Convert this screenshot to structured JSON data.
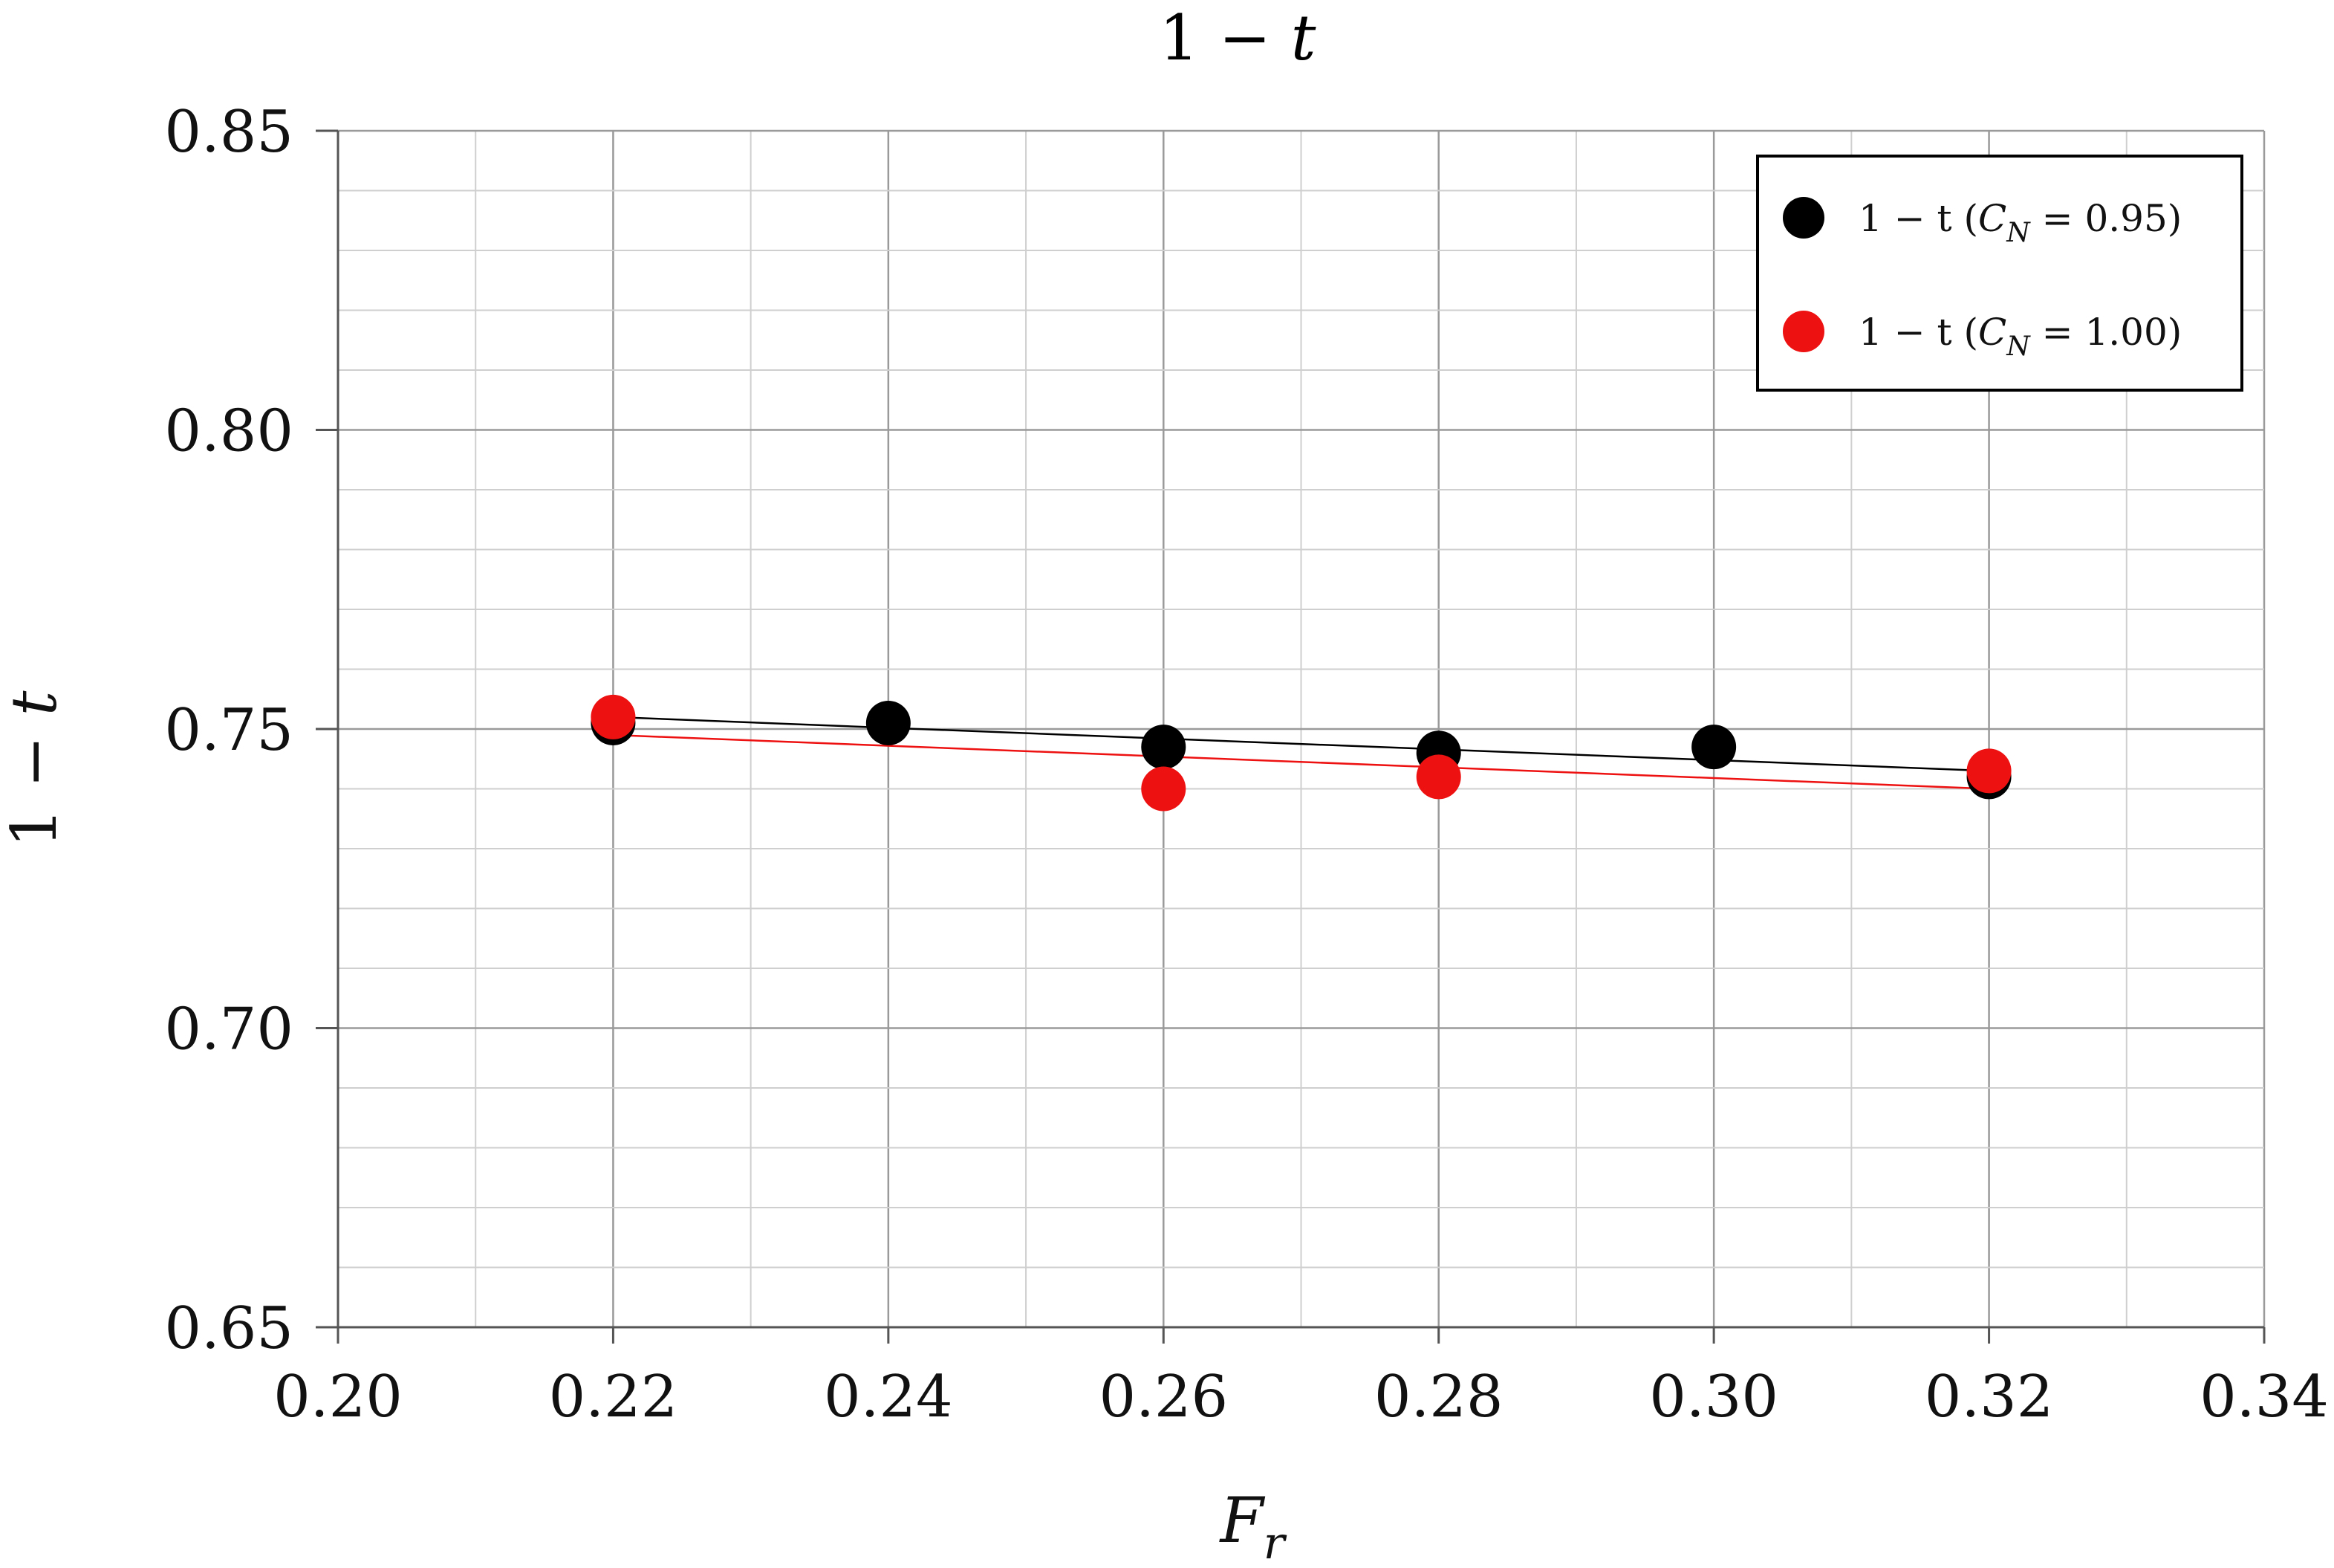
{
  "chart_data": {
    "type": "scatter",
    "title": "1 − t",
    "xlabel": "Fr",
    "ylabel": "1 − t",
    "xlim": [
      0.2,
      0.34
    ],
    "ylim": [
      0.65,
      0.85
    ],
    "x_ticks": [
      "0.20",
      "0.22",
      "0.24",
      "0.26",
      "0.28",
      "0.30",
      "0.32",
      "0.34"
    ],
    "y_ticks": [
      "0.65",
      "0.70",
      "0.75",
      "0.80",
      "0.85"
    ],
    "grid": true,
    "legend_position": "top-right",
    "series": [
      {
        "name": "1 − t (CN = 0.95)",
        "color": "#000000",
        "x": [
          0.22,
          0.24,
          0.26,
          0.28,
          0.3,
          0.32
        ],
        "y": [
          0.751,
          0.751,
          0.747,
          0.746,
          0.747,
          0.742
        ],
        "trendline": {
          "x": [
            0.22,
            0.32
          ],
          "y": [
            0.752,
            0.743
          ]
        }
      },
      {
        "name": "1 − t (CN = 1.00)",
        "color": "#ee1111",
        "x": [
          0.22,
          0.26,
          0.28,
          0.32
        ],
        "y": [
          0.752,
          0.74,
          0.742,
          0.743
        ],
        "trendline": {
          "x": [
            0.22,
            0.32
          ],
          "y": [
            0.749,
            0.74
          ]
        }
      }
    ],
    "legend": [
      {
        "label_prefix": "1 − t (",
        "label_var": "C",
        "label_sub": "N",
        "label_suffix": " = 0.95)"
      },
      {
        "label_prefix": "1 − t (",
        "label_var": "C",
        "label_sub": "N",
        "label_suffix": " = 1.00)"
      }
    ],
    "title_parts": {
      "lead": "1 − ",
      "var": "t"
    },
    "xlabel_parts": {
      "var": "F",
      "sub": "r"
    },
    "ylabel_parts": {
      "lead": "1 − ",
      "var": "t"
    }
  }
}
